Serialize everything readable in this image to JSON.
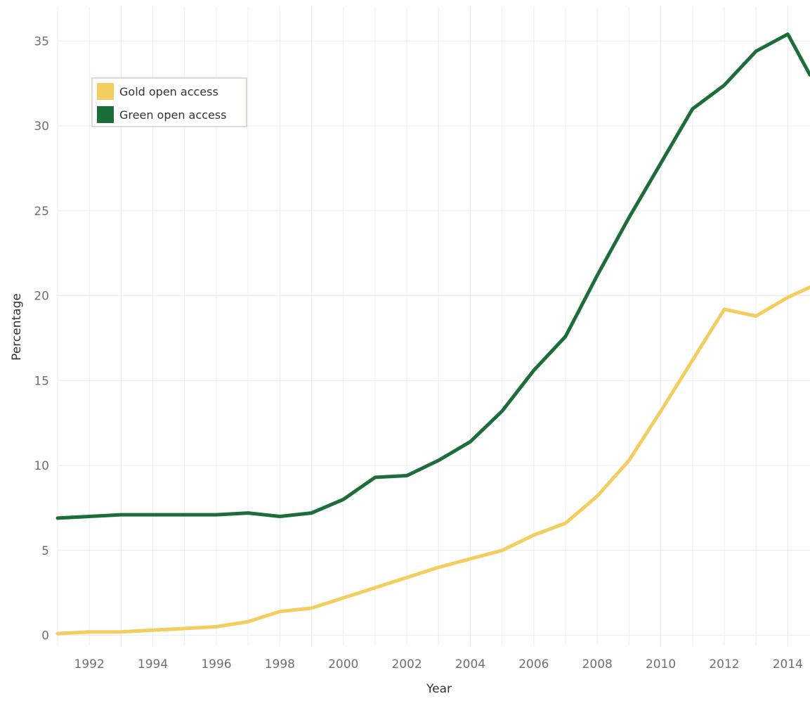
{
  "chart_data": {
    "type": "line",
    "xlabel": "Year",
    "ylabel": "Percentage",
    "xlim": [
      1991,
      2014.7
    ],
    "ylim": [
      -0.6,
      37
    ],
    "x_ticks": [
      1992,
      1994,
      1996,
      1998,
      2000,
      2002,
      2004,
      2006,
      2008,
      2010,
      2012,
      2014
    ],
    "y_ticks": [
      0,
      5,
      10,
      15,
      20,
      25,
      30,
      35
    ],
    "grid": true,
    "legend_position": "top-left",
    "series": [
      {
        "name": "Gold open access",
        "color": "#f4cd5f",
        "x": [
          1991,
          1992,
          1993,
          1994,
          1995,
          1996,
          1997,
          1998,
          1999,
          2000,
          2001,
          2002,
          2003,
          2004,
          2005,
          2006,
          2007,
          2008,
          2009,
          2010,
          2011,
          2012,
          2013,
          2014,
          2014.7
        ],
        "y": [
          0.1,
          0.2,
          0.2,
          0.3,
          0.4,
          0.5,
          0.8,
          1.4,
          1.6,
          2.2,
          2.8,
          3.4,
          4.0,
          4.5,
          5.0,
          5.9,
          6.6,
          8.2,
          10.3,
          13.2,
          16.2,
          19.2,
          18.8,
          19.9,
          20.5
        ]
      },
      {
        "name": "Green open access",
        "color": "#1b6e3a",
        "x": [
          1991,
          1992,
          1993,
          1994,
          1995,
          1996,
          1997,
          1998,
          1999,
          2000,
          2001,
          2002,
          2003,
          2004,
          2005,
          2006,
          2007,
          2008,
          2009,
          2010,
          2011,
          2012,
          2013,
          2014,
          2014.7
        ],
        "y": [
          6.9,
          7.0,
          7.1,
          7.1,
          7.1,
          7.1,
          7.2,
          7.0,
          7.2,
          8.0,
          9.3,
          9.4,
          10.3,
          11.4,
          13.2,
          15.6,
          17.6,
          21.2,
          24.6,
          27.8,
          31.0,
          32.4,
          34.4,
          35.4,
          33.0
        ]
      }
    ]
  }
}
